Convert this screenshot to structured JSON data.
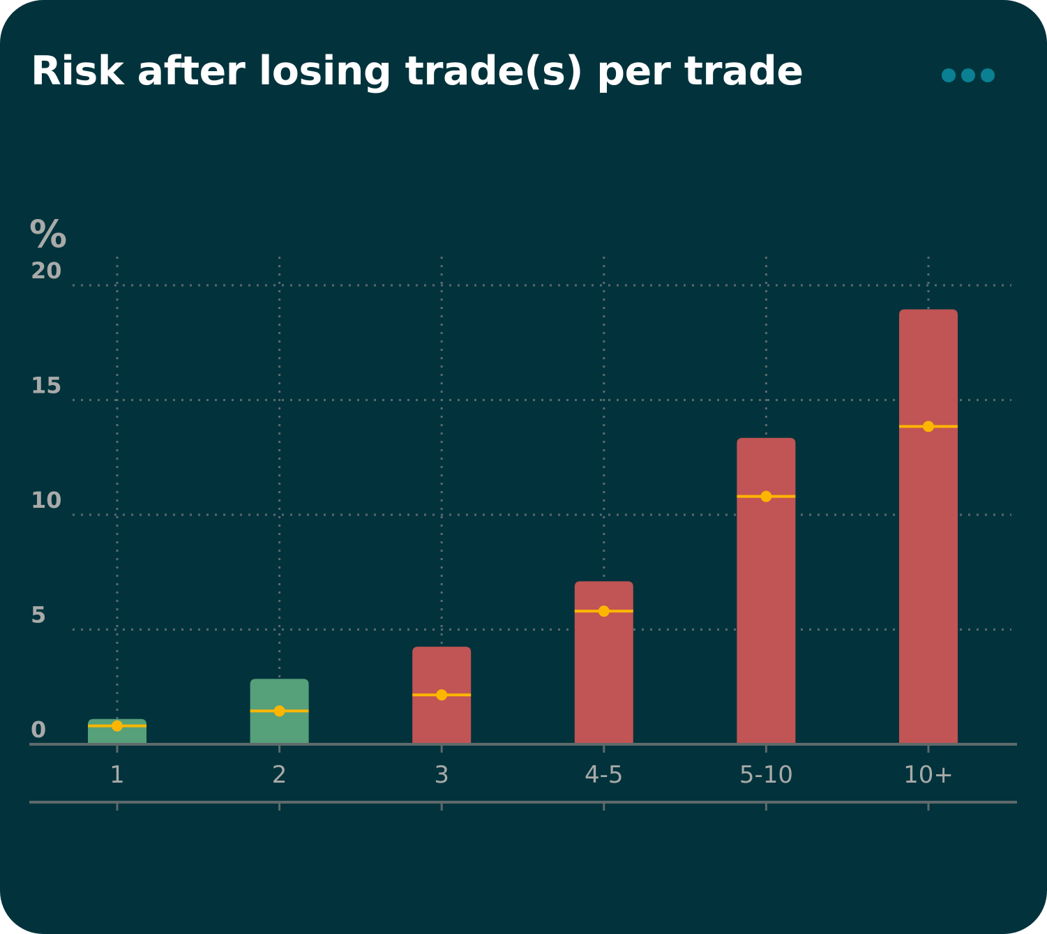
{
  "card": {
    "title": "Risk after losing trade(s) per trade",
    "menu_icon": "more-horizontal-icon"
  },
  "colors": {
    "background": "#02333c",
    "positive": "#56a07a",
    "negative": "#c15454",
    "marker": "#fdb600",
    "grid": "#5e6a6c",
    "axis_text": "#a9aaa9",
    "menu": "#0b8093"
  },
  "chart_data": {
    "type": "bar",
    "ylabel": "%",
    "ylim": [
      0,
      20
    ],
    "yticks": [
      "0",
      "5",
      "10",
      "15",
      "20"
    ],
    "categories": [
      "1",
      "2",
      "3",
      "4-5",
      "5-10",
      "10+"
    ],
    "values": [
      1.1,
      2.85,
      4.25,
      7.1,
      13.35,
      18.95
    ],
    "markers": [
      0.8,
      1.45,
      2.15,
      5.8,
      10.8,
      13.85
    ],
    "bar_status": [
      "positive",
      "positive",
      "negative",
      "negative",
      "negative",
      "negative"
    ],
    "grid": true
  }
}
